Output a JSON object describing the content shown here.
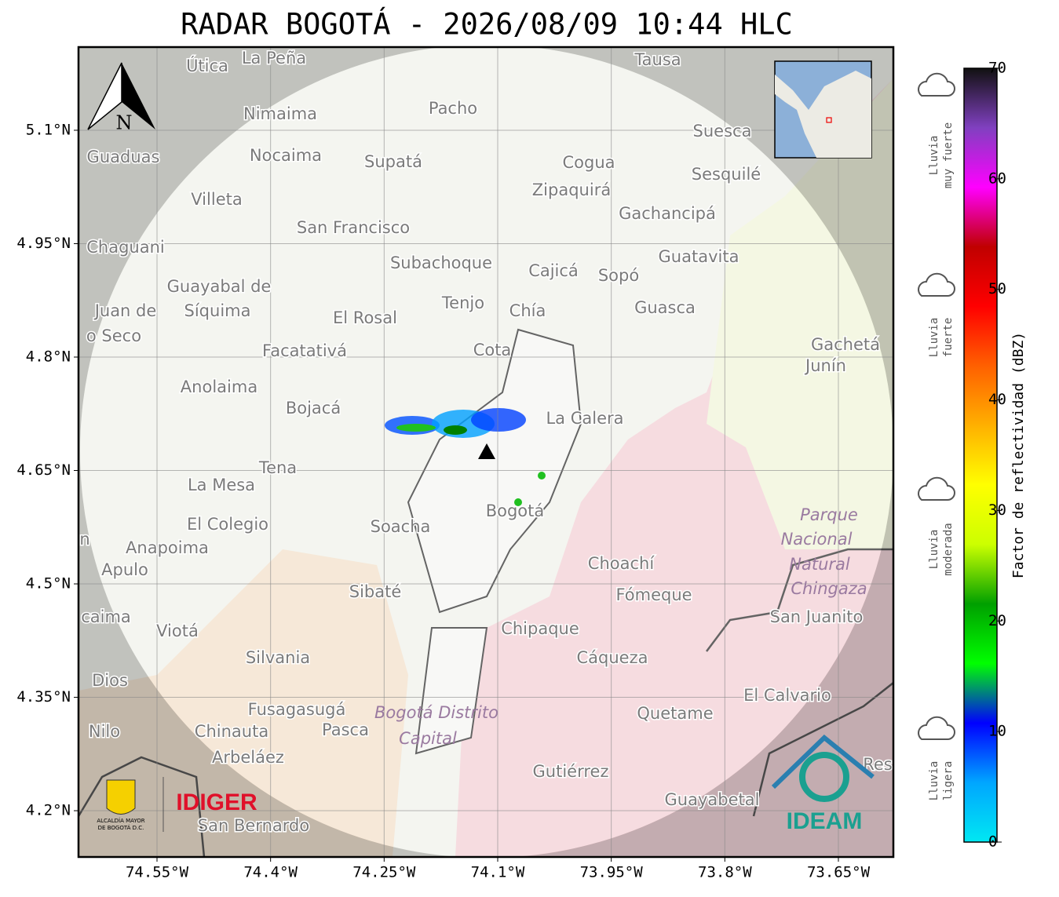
{
  "title": "RADAR BOGOTÁ - 2026/08/09 10:44 HLC",
  "map": {
    "xlim": [
      -74.6537,
      -73.5774
    ],
    "ylim": [
      4.1388,
      5.21
    ],
    "xticks": [
      {
        "value": -74.55,
        "label": "74.55°W"
      },
      {
        "value": -74.4,
        "label": "74.4°W"
      },
      {
        "value": -74.25,
        "label": "74.25°W"
      },
      {
        "value": -74.1,
        "label": "74.1°W"
      },
      {
        "value": -73.95,
        "label": "73.95°W"
      },
      {
        "value": -73.8,
        "label": "73.8°W"
      },
      {
        "value": -73.65,
        "label": "73.65°W"
      }
    ],
    "yticks": [
      {
        "value": 4.2,
        "label": "4.2°N"
      },
      {
        "value": 4.35,
        "label": "4.35°N"
      },
      {
        "value": 4.5,
        "label": "4.5°N"
      },
      {
        "value": 4.65,
        "label": "4.65°N"
      },
      {
        "value": 4.8,
        "label": "4.8°N"
      },
      {
        "value": 4.95,
        "label": "4.95°N"
      },
      {
        "value": 5.1,
        "label": "5.1°N"
      }
    ],
    "north": "N",
    "places": [
      "La Peña",
      "Útica",
      "Tausa",
      "Pacho",
      "Nimaima",
      "Suesca",
      "Guaduas",
      "Nocaima",
      "Supatá",
      "Cogua",
      "Sesquilé",
      "Zipaquirá",
      "Villeta",
      "Gachancipá",
      "San Francisco",
      "Chaguani",
      "Guatavita",
      "Subachoque",
      "Cajicá",
      "Sopó",
      "Guayabal de",
      "Síquima",
      "Tenjo",
      "Juan de",
      "Guasca",
      "Chía",
      "El Rosal",
      "o Seco",
      "Facatativá",
      "Cota",
      "Gachetá",
      "Junín",
      "Anolaima",
      "Bojacá",
      "La Calera",
      "Tena",
      "La Mesa",
      "Bogotá",
      "Soacha",
      "El Colegio",
      "Anapoima",
      "Apulo",
      "Choachí",
      "Sibaté",
      "Fómeque",
      "San Juanito",
      "caima",
      "Viotá",
      "Chipaque",
      "Silvania",
      "Cáqueza",
      "Dios",
      "El Calvario",
      "Fusagasugá",
      "Quetame",
      "Nilo",
      "Chinauta",
      "Pasca",
      "Arbeláez",
      "Gutiérrez",
      "Res",
      "Guayabetal",
      "San Bernardo",
      "n"
    ],
    "areas": [
      "Parque",
      "Nacional",
      "Natural",
      "Chingaza",
      "Bogotá Distrito",
      "Capital"
    ]
  },
  "colorbar": {
    "label": "Factor de reflectividad (dBZ)",
    "lim": [
      0,
      70
    ],
    "ticks": [
      0,
      10,
      20,
      30,
      40,
      50,
      60,
      70
    ],
    "colormap": [
      "#00e8f2",
      "#00a6ff",
      "#0000ff",
      "#00ff00",
      "#00a000",
      "#ccff00",
      "#ffff00",
      "#ffb000",
      "#ff6000",
      "#ff0000",
      "#c00000",
      "#ff00ff",
      "#8040c0",
      "#111111"
    ],
    "categories": [
      [
        "Lluvia",
        "muy fuerte"
      ],
      [
        "Lluvia",
        "fuerte"
      ],
      [
        "Lluvia",
        "moderada"
      ],
      [
        "Lluvia",
        "ligera"
      ]
    ]
  },
  "logos": {
    "alcaldia": [
      "ALCALDÍA MAYOR",
      "DE BOGOTÁ D.C."
    ],
    "idiger": "IDIGER",
    "ideam": "IDEAM"
  }
}
